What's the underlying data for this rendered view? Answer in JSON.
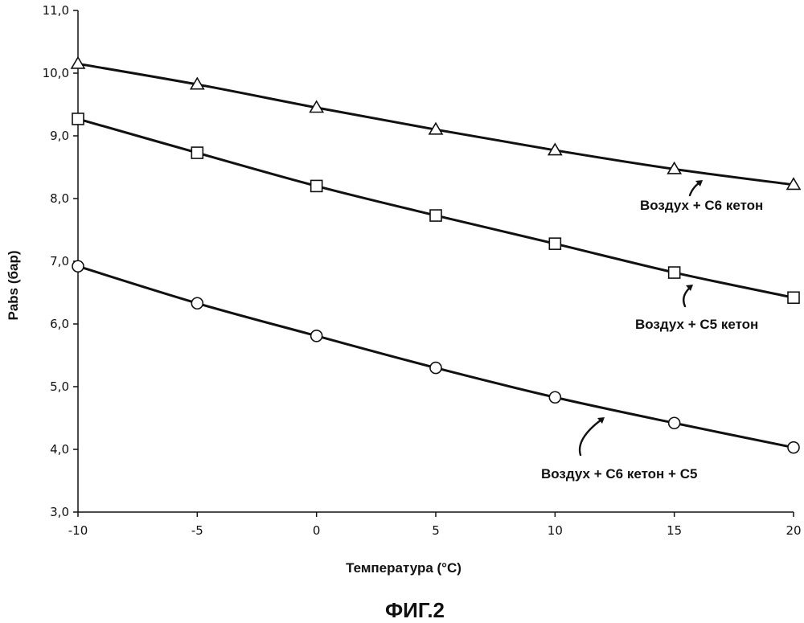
{
  "figure_caption": "ФИГ.2",
  "chart_data": {
    "type": "line",
    "xlabel": "Температура (°C)",
    "ylabel": "Pabs (бар)",
    "xlim": [
      -10,
      20
    ],
    "ylim": [
      3.0,
      11.0
    ],
    "x_ticks": [
      -10,
      -5,
      0,
      5,
      10,
      15,
      20
    ],
    "y_ticks": [
      "3,0",
      "4,0",
      "5,0",
      "6,0",
      "7,0",
      "8,0",
      "9,0",
      "10,0",
      "11,0"
    ],
    "x": [
      -10,
      -5,
      0,
      5,
      10,
      15,
      20
    ],
    "grid": false,
    "legend": "none",
    "series": [
      {
        "name": "Воздух + С6 кетон",
        "marker": "triangle",
        "values": [
          10.15,
          9.82,
          9.45,
          9.1,
          8.77,
          8.47,
          8.22
        ]
      },
      {
        "name": "Воздух + С5 кетон",
        "marker": "square",
        "values": [
          9.27,
          8.73,
          8.2,
          7.73,
          7.28,
          6.82,
          6.42
        ]
      },
      {
        "name": "Воздух + С6 кетон + С5",
        "marker": "circle",
        "values": [
          6.92,
          6.33,
          5.81,
          5.3,
          4.83,
          4.42,
          4.03
        ]
      }
    ]
  }
}
